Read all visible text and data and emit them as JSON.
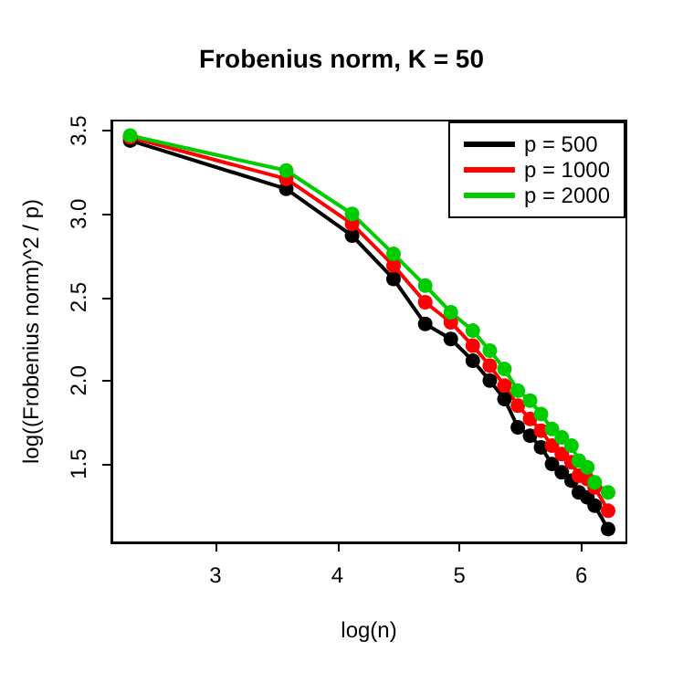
{
  "chart_data": {
    "type": "line",
    "title": "Frobenius norm, K = 50",
    "xlabel": "log(n)",
    "ylabel": "log((Frobenius norm)^2 / p)",
    "x": [
      2.3,
      3.58,
      4.12,
      4.46,
      4.72,
      4.93,
      5.11,
      5.25,
      5.37,
      5.48,
      5.58,
      5.67,
      5.76,
      5.84,
      5.92,
      5.98,
      6.05,
      6.11,
      6.22
    ],
    "series": [
      {
        "name": "p = 500",
        "color": "#000000",
        "values": [
          3.44,
          3.15,
          2.87,
          2.61,
          2.34,
          2.25,
          2.12,
          2.0,
          1.89,
          1.72,
          1.67,
          1.6,
          1.5,
          1.45,
          1.4,
          1.33,
          1.3,
          1.25,
          1.11
        ]
      },
      {
        "name": "p = 1000",
        "color": "#ff0000",
        "values": [
          3.46,
          3.21,
          2.94,
          2.69,
          2.47,
          2.35,
          2.21,
          2.09,
          1.97,
          1.85,
          1.77,
          1.7,
          1.61,
          1.56,
          1.51,
          1.43,
          1.41,
          1.36,
          1.22
        ]
      },
      {
        "name": "p = 2000",
        "color": "#00cd00",
        "values": [
          3.47,
          3.26,
          3.0,
          2.76,
          2.57,
          2.41,
          2.3,
          2.18,
          2.07,
          1.94,
          1.88,
          1.8,
          1.71,
          1.66,
          1.61,
          1.52,
          1.48,
          1.39,
          1.33
        ]
      }
    ],
    "xlim": [
      2.146,
      6.37
    ],
    "xticks": [
      3,
      4,
      5,
      6
    ],
    "ylim": [
      1.03,
      3.56
    ],
    "yticks": [
      1.5,
      {
        "value": 2,
        "label": "2.0"
      },
      2.5,
      {
        "value": 3,
        "label": "3.0"
      },
      3.5
    ],
    "grid": false,
    "legend": "top right",
    "marker": "circle",
    "line_style": "solid"
  }
}
